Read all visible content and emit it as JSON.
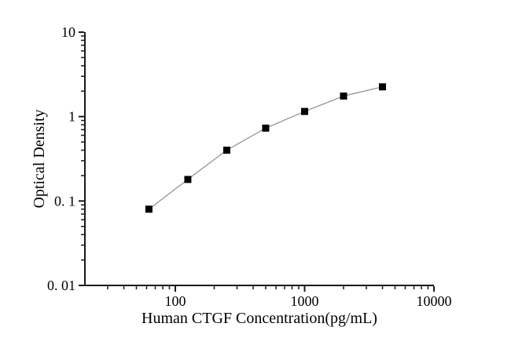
{
  "page": {
    "background_color": "#ffffff",
    "text_color": "#000000"
  },
  "chart_data": {
    "type": "line",
    "title": "",
    "xlabel": "Human CTGF Concentration(pg/mL)",
    "ylabel": "Optical Density",
    "x_scale": "log",
    "y_scale": "log",
    "xlim": [
      20,
      10000
    ],
    "ylim": [
      0.01,
      10
    ],
    "x": [
      62.5,
      125,
      250,
      500,
      1000,
      2000,
      4000
    ],
    "y": [
      0.08,
      0.18,
      0.4,
      0.73,
      1.15,
      1.75,
      2.25
    ],
    "x_major_ticks": [
      100,
      1000,
      10000
    ],
    "x_tick_labels": [
      "100",
      "1000",
      "10000"
    ],
    "y_major_ticks": [
      10,
      1,
      0.1,
      0.01
    ],
    "y_tick_labels": [
      "10",
      "1",
      "0. 1",
      "0. 01"
    ],
    "grid": false,
    "legend": false,
    "marker": "filled-square",
    "marker_color": "#000000",
    "line_color": "#8c8c8c",
    "axis_color": "#1a1a1a"
  }
}
